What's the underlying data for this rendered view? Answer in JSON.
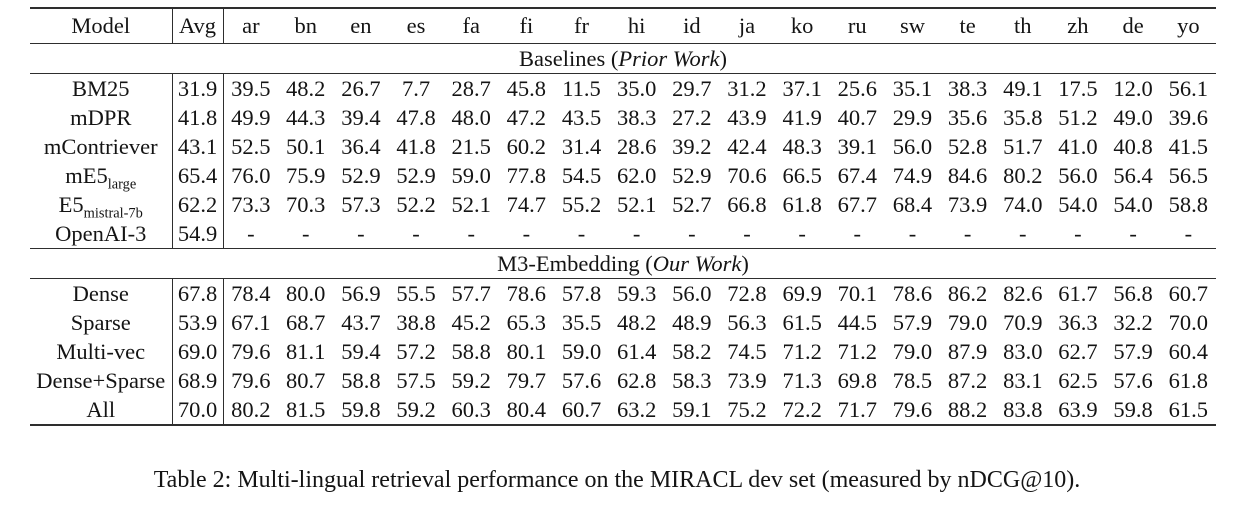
{
  "table": {
    "header": {
      "model_label": "Model",
      "avg_label": "Avg",
      "languages": [
        "ar",
        "bn",
        "en",
        "es",
        "fa",
        "fi",
        "fr",
        "hi",
        "id",
        "ja",
        "ko",
        "ru",
        "sw",
        "te",
        "th",
        "zh",
        "de",
        "yo"
      ]
    },
    "sections": [
      {
        "title": {
          "prefix": "Baselines (",
          "italic": "Prior Work",
          "suffix": ")"
        },
        "rows": [
          {
            "model": "BM25",
            "sub": "",
            "avg": "31.9",
            "avg_bold": false,
            "bold_cols": [],
            "values": [
              "39.5",
              "48.2",
              "26.7",
              "7.7",
              "28.7",
              "45.8",
              "11.5",
              "35.0",
              "29.7",
              "31.2",
              "37.1",
              "25.6",
              "35.1",
              "38.3",
              "49.1",
              "17.5",
              "12.0",
              "56.1"
            ]
          },
          {
            "model": "mDPR",
            "sub": "",
            "avg": "41.8",
            "avg_bold": false,
            "bold_cols": [],
            "values": [
              "49.9",
              "44.3",
              "39.4",
              "47.8",
              "48.0",
              "47.2",
              "43.5",
              "38.3",
              "27.2",
              "43.9",
              "41.9",
              "40.7",
              "29.9",
              "35.6",
              "35.8",
              "51.2",
              "49.0",
              "39.6"
            ]
          },
          {
            "model": "mContriever",
            "sub": "",
            "avg": "43.1",
            "avg_bold": false,
            "bold_cols": [],
            "values": [
              "52.5",
              "50.1",
              "36.4",
              "41.8",
              "21.5",
              "60.2",
              "31.4",
              "28.6",
              "39.2",
              "42.4",
              "48.3",
              "39.1",
              "56.0",
              "52.8",
              "51.7",
              "41.0",
              "40.8",
              "41.5"
            ]
          },
          {
            "model": "mE5",
            "sub": "large",
            "avg": "65.4",
            "avg_bold": false,
            "bold_cols": [],
            "values": [
              "76.0",
              "75.9",
              "52.9",
              "52.9",
              "59.0",
              "77.8",
              "54.5",
              "62.0",
              "52.9",
              "70.6",
              "66.5",
              "67.4",
              "74.9",
              "84.6",
              "80.2",
              "56.0",
              "56.4",
              "56.5"
            ]
          },
          {
            "model": "E5",
            "sub": "mistral-7b",
            "avg": "62.2",
            "avg_bold": false,
            "bold_cols": [],
            "values": [
              "73.3",
              "70.3",
              "57.3",
              "52.2",
              "52.1",
              "74.7",
              "55.2",
              "52.1",
              "52.7",
              "66.8",
              "61.8",
              "67.7",
              "68.4",
              "73.9",
              "74.0",
              "54.0",
              "54.0",
              "58.8"
            ]
          },
          {
            "model": "OpenAI-3",
            "sub": "",
            "avg": "54.9",
            "avg_bold": false,
            "bold_cols": [],
            "values": [
              "-",
              "-",
              "-",
              "-",
              "-",
              "-",
              "-",
              "-",
              "-",
              "-",
              "-",
              "-",
              "-",
              "-",
              "-",
              "-",
              "-",
              "-"
            ]
          }
        ]
      },
      {
        "title": {
          "prefix": "M3-Embedding (",
          "italic": "Our Work",
          "suffix": ")"
        },
        "rows": [
          {
            "model": "Dense",
            "sub": "",
            "avg": "67.8",
            "avg_bold": false,
            "bold_cols": [],
            "values": [
              "78.4",
              "80.0",
              "56.9",
              "55.5",
              "57.7",
              "78.6",
              "57.8",
              "59.3",
              "56.0",
              "72.8",
              "69.9",
              "70.1",
              "78.6",
              "86.2",
              "82.6",
              "61.7",
              "56.8",
              "60.7"
            ]
          },
          {
            "model": "Sparse",
            "sub": "",
            "avg": "53.9",
            "avg_bold": false,
            "bold_cols": [],
            "values": [
              "67.1",
              "68.7",
              "43.7",
              "38.8",
              "45.2",
              "65.3",
              "35.5",
              "48.2",
              "48.9",
              "56.3",
              "61.5",
              "44.5",
              "57.9",
              "79.0",
              "70.9",
              "36.3",
              "32.2",
              "70.0"
            ]
          },
          {
            "model": "Multi-vec",
            "sub": "",
            "avg": "69.0",
            "avg_bold": false,
            "bold_cols": [],
            "values": [
              "79.6",
              "81.1",
              "59.4",
              "57.2",
              "58.8",
              "80.1",
              "59.0",
              "61.4",
              "58.2",
              "74.5",
              "71.2",
              "71.2",
              "79.0",
              "87.9",
              "83.0",
              "62.7",
              "57.9",
              "60.4"
            ]
          },
          {
            "model": "Dense+Sparse",
            "sub": "",
            "avg": "68.9",
            "avg_bold": false,
            "bold_cols": [
              17
            ],
            "values": [
              "79.6",
              "80.7",
              "58.8",
              "57.5",
              "59.2",
              "79.7",
              "57.6",
              "62.8",
              "58.3",
              "73.9",
              "71.3",
              "69.8",
              "78.5",
              "87.2",
              "83.1",
              "62.5",
              "57.6",
              "61.8"
            ]
          },
          {
            "model": "All",
            "sub": "",
            "avg": "70.0",
            "avg_bold": true,
            "bold_cols": [
              0,
              1,
              2,
              3,
              4,
              5,
              6,
              7,
              8,
              9,
              10,
              11,
              12,
              13,
              14,
              15,
              16
            ],
            "values": [
              "80.2",
              "81.5",
              "59.8",
              "59.2",
              "60.3",
              "80.4",
              "60.7",
              "63.2",
              "59.1",
              "75.2",
              "72.2",
              "71.7",
              "79.6",
              "88.2",
              "83.8",
              "63.9",
              "59.8",
              "61.5"
            ]
          }
        ]
      }
    ]
  },
  "caption": "Table 2: Multi-lingual retrieval performance on the MIRACL dev set (measured by nDCG@10)."
}
